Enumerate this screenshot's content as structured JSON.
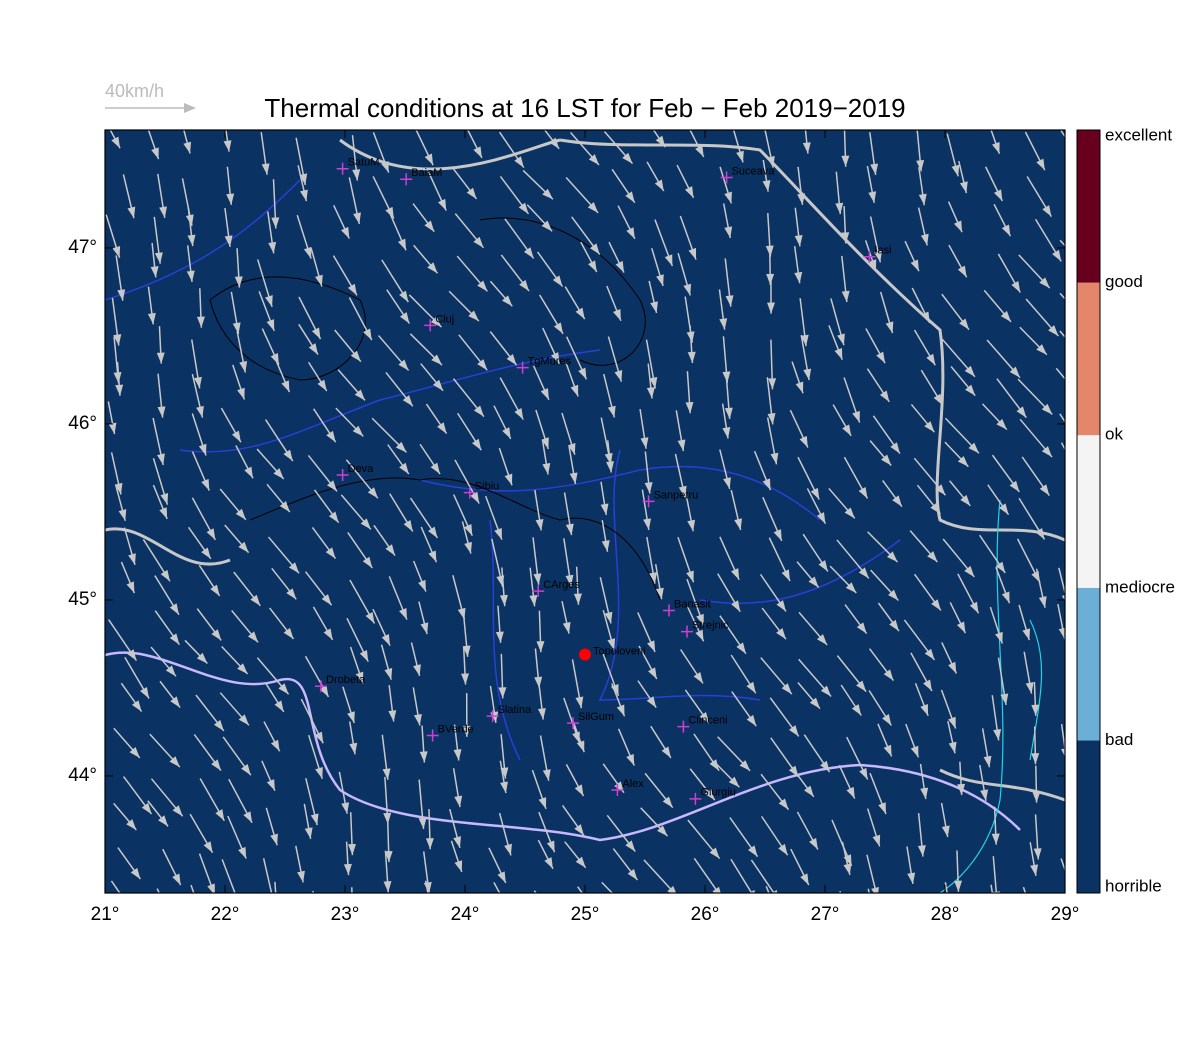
{
  "title": "Thermal conditions at 16 LST for Feb − Feb  2019−2019",
  "vector_scale": "40km/h",
  "map": {
    "xlim": [
      21,
      29
    ],
    "ylim": [
      43.335,
      47.67
    ],
    "xticks": [
      {
        "value": 21,
        "label": "21°"
      },
      {
        "value": 22,
        "label": "22°"
      },
      {
        "value": 23,
        "label": "23°"
      },
      {
        "value": 24,
        "label": "24°"
      },
      {
        "value": 25,
        "label": "25°"
      },
      {
        "value": 26,
        "label": "26°"
      },
      {
        "value": 27,
        "label": "27°"
      },
      {
        "value": 28,
        "label": "28°"
      },
      {
        "value": 29,
        "label": "29°"
      }
    ],
    "yticks": [
      {
        "value": 44,
        "label": "44°"
      },
      {
        "value": 45,
        "label": "45°"
      },
      {
        "value": 46,
        "label": "46°"
      },
      {
        "value": 47,
        "label": "47°"
      }
    ],
    "background": "#0a3263",
    "cities": [
      {
        "name": "SatuM",
        "lon": 22.98,
        "lat": 47.45
      },
      {
        "name": "BaiaM",
        "lon": 23.51,
        "lat": 47.39
      },
      {
        "name": "Suceava",
        "lon": 26.18,
        "lat": 47.4
      },
      {
        "name": "Iasi",
        "lon": 27.37,
        "lat": 46.95
      },
      {
        "name": "Cluj",
        "lon": 23.71,
        "lat": 46.56
      },
      {
        "name": "TgMures",
        "lon": 24.48,
        "lat": 46.32
      },
      {
        "name": "Deva",
        "lon": 22.98,
        "lat": 45.71
      },
      {
        "name": "Sibiu",
        "lon": 24.04,
        "lat": 45.61
      },
      {
        "name": "Sanpetru",
        "lon": 25.53,
        "lat": 45.56
      },
      {
        "name": "CArges",
        "lon": 24.61,
        "lat": 45.05
      },
      {
        "name": "Banasit",
        "lon": 25.7,
        "lat": 44.94
      },
      {
        "name": "Strejnic",
        "lon": 25.85,
        "lat": 44.82
      },
      {
        "name": "Drobeta",
        "lon": 22.8,
        "lat": 44.51
      },
      {
        "name": "Slatina",
        "lon": 24.23,
        "lat": 44.34
      },
      {
        "name": "SilGum",
        "lon": 24.9,
        "lat": 44.3
      },
      {
        "name": "Clinceni",
        "lon": 25.82,
        "lat": 44.28
      },
      {
        "name": "BVerde",
        "lon": 23.73,
        "lat": 44.23
      },
      {
        "name": "Alex",
        "lon": 25.27,
        "lat": 43.92
      },
      {
        "name": "Giurgiu",
        "lon": 25.92,
        "lat": 43.87
      }
    ],
    "site": {
      "name": "Topoloveni",
      "lon": 25.0,
      "lat": 44.69,
      "color": "#ff0000"
    }
  },
  "colorbar": {
    "labels": [
      "horrible",
      "bad",
      "mediocre",
      "ok",
      "good",
      "excellent"
    ],
    "colors": [
      "#0a3263",
      "#6baed6",
      "#f4f4f4",
      "#e3866a",
      "#67001f"
    ]
  }
}
